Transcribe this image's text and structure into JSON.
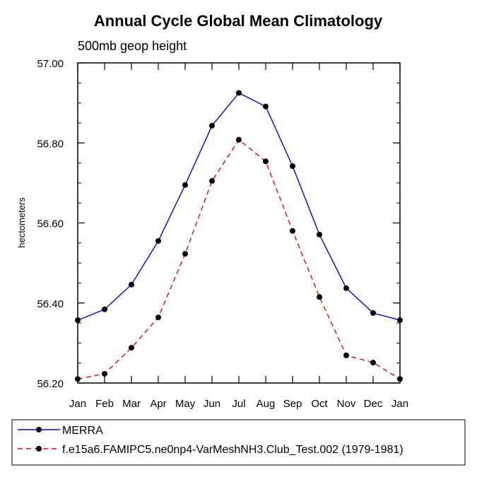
{
  "chart_data": {
    "type": "line",
    "title": "Annual Cycle Global Mean Climatology",
    "subtitle": "500mb geop height",
    "ylabel": "hectometers",
    "xlabel": "",
    "categories": [
      "Jan",
      "Feb",
      "Mar",
      "Apr",
      "May",
      "Jun",
      "Jul",
      "Aug",
      "Sep",
      "Oct",
      "Nov",
      "Dec",
      "Jan"
    ],
    "ylim": [
      56.2,
      57.0
    ],
    "yticks": [
      56.2,
      56.4,
      56.6,
      56.8,
      57.0
    ],
    "ytick_labels": [
      "56.20",
      "56.40",
      "56.60",
      "56.80",
      "57.00"
    ],
    "grid": false,
    "legend_position": "bottom",
    "series": [
      {
        "name": "MERRA",
        "color": "#0000ff",
        "dash": "solid",
        "values": [
          56.357,
          56.384,
          56.446,
          56.555,
          56.695,
          56.843,
          56.925,
          56.891,
          56.742,
          56.571,
          56.437,
          56.375,
          56.357
        ]
      },
      {
        "name": "f.e15a6.FAMIPC5.ne0np4-VarMeshNH3.Club_Test.002 (1979-1981)",
        "color": "#ff0000",
        "dash": "dashed",
        "values": [
          56.21,
          56.223,
          56.288,
          56.364,
          56.523,
          56.705,
          56.808,
          56.754,
          56.58,
          56.415,
          56.269,
          56.251,
          56.21
        ]
      }
    ]
  }
}
